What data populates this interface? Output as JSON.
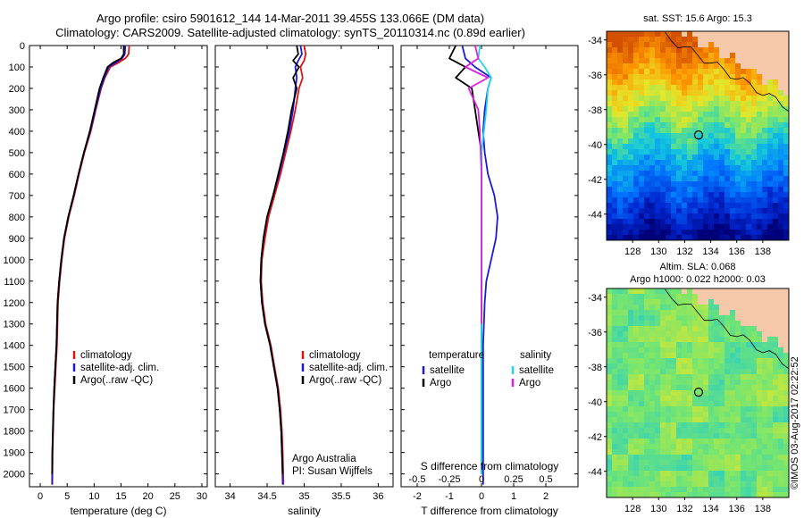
{
  "titles": {
    "line1": "Argo profile: csiro 5901612_144 14-Mar-2011 39.455S 133.066E (DM data)",
    "line2": "Climatology: CARS2009. Satellite-adjusted climatology: synTS_20110314.nc (0.89d earlier)"
  },
  "colors": {
    "climatology": "#e41010",
    "satellite": "#1a1adc",
    "argo": "#000000",
    "sat_salinity": "#22d8e8",
    "argo_salinity": "#dd22dd"
  },
  "chart_data": [
    {
      "type": "line",
      "xlabel": "temperature (deg C)",
      "ylabel": "",
      "xlim": [
        -2,
        31
      ],
      "ylim": [
        2060,
        0
      ],
      "xticks": [
        0,
        5,
        10,
        15,
        20,
        25,
        30
      ],
      "yticks": [
        0,
        100,
        200,
        300,
        400,
        500,
        600,
        700,
        800,
        900,
        1000,
        1100,
        1200,
        1300,
        1400,
        1500,
        1600,
        1700,
        1800,
        1900,
        2000
      ],
      "legend": [
        "climatology",
        "satellite-adj. clim.",
        "Argo(..raw -QC)"
      ],
      "series": [
        {
          "name": "climatology",
          "x": [
            16.5,
            16.4,
            15.8,
            14.5,
            13.0,
            12.0,
            11.3,
            10.3,
            9.4,
            8.2,
            7.2,
            6.3,
            5.3,
            4.5,
            4.0,
            3.6,
            3.3,
            3.1,
            2.9,
            2.7,
            2.5,
            2.4,
            2.3,
            2.25
          ],
          "y": [
            0,
            40,
            60,
            80,
            100,
            150,
            200,
            300,
            400,
            500,
            600,
            700,
            800,
            900,
            1000,
            1100,
            1200,
            1400,
            1500,
            1600,
            1700,
            1800,
            1900,
            2050
          ]
        },
        {
          "name": "satellite-adj. clim.",
          "x": [
            15.8,
            15.7,
            15.2,
            14.0,
            12.7,
            11.9,
            11.2,
            10.2,
            9.3,
            8.1,
            7.1,
            6.2,
            5.2,
            4.4,
            3.9,
            3.5,
            3.2,
            3.0,
            2.8,
            2.6,
            2.45,
            2.35,
            2.25,
            2.2
          ],
          "y": [
            0,
            40,
            60,
            80,
            100,
            150,
            200,
            300,
            400,
            500,
            600,
            700,
            800,
            900,
            1000,
            1100,
            1200,
            1400,
            1500,
            1600,
            1700,
            1800,
            1900,
            2050
          ]
        },
        {
          "name": "Argo(..raw -QC)",
          "x": [
            15.5,
            15.5,
            15.0,
            13.5,
            12.5,
            11.7,
            11.0,
            10.1,
            9.2,
            8.1,
            7.1,
            6.2,
            5.2,
            4.4,
            3.9,
            3.5,
            3.2,
            3.0,
            2.8,
            2.6,
            2.45,
            2.35,
            2.25,
            2.2
          ],
          "y": [
            0,
            40,
            60,
            80,
            100,
            150,
            200,
            300,
            400,
            500,
            600,
            700,
            800,
            900,
            1000,
            1100,
            1200,
            1400,
            1500,
            1600,
            1700,
            1800,
            1900,
            2000
          ]
        }
      ]
    },
    {
      "type": "line",
      "xlabel": "salinity",
      "ylabel": "",
      "xlim": [
        33.8,
        36.2
      ],
      "ylim": [
        2060,
        0
      ],
      "xticks": [
        34,
        34.5,
        35,
        35.5,
        36
      ],
      "legend": [
        "climatology",
        "satellite-adj. clim.",
        "Argo(..raw -QC)"
      ],
      "annotation": [
        "Argo Australia",
        "PI: Susan Wijffels"
      ],
      "series": [
        {
          "name": "climatology",
          "x": [
            35.0,
            35.02,
            35.0,
            34.95,
            34.98,
            34.93,
            34.88,
            34.82,
            34.75,
            34.68,
            34.6,
            34.52,
            34.47,
            34.43,
            34.42,
            34.44,
            34.48,
            34.55,
            34.6,
            34.65,
            34.68,
            34.7,
            34.71,
            34.72
          ],
          "y": [
            0,
            40,
            70,
            100,
            150,
            200,
            300,
            400,
            500,
            600,
            700,
            800,
            900,
            1000,
            1100,
            1200,
            1300,
            1400,
            1500,
            1600,
            1700,
            1800,
            1900,
            2050
          ]
        },
        {
          "name": "satellite-adj. clim.",
          "x": [
            34.95,
            34.97,
            34.92,
            34.88,
            34.9,
            34.88,
            34.85,
            34.8,
            34.73,
            34.66,
            34.58,
            34.5,
            34.45,
            34.42,
            34.41,
            34.43,
            34.47,
            34.54,
            34.59,
            34.64,
            34.67,
            34.69,
            34.7,
            34.71
          ],
          "y": [
            0,
            40,
            70,
            100,
            150,
            200,
            300,
            400,
            500,
            600,
            700,
            800,
            900,
            1000,
            1100,
            1200,
            1300,
            1400,
            1500,
            1600,
            1700,
            1800,
            1900,
            2050
          ]
        },
        {
          "name": "Argo(..raw -QC)",
          "x": [
            34.9,
            34.92,
            34.85,
            34.93,
            34.85,
            34.9,
            34.83,
            34.78,
            34.72,
            34.65,
            34.58,
            34.5,
            34.45,
            34.42,
            34.41,
            34.43,
            34.47,
            34.54,
            34.59,
            34.64,
            34.67,
            34.69,
            34.7,
            34.71
          ],
          "y": [
            0,
            40,
            70,
            100,
            150,
            200,
            300,
            400,
            500,
            600,
            700,
            800,
            900,
            1000,
            1100,
            1200,
            1300,
            1400,
            1500,
            1600,
            1700,
            1800,
            1900,
            2000
          ]
        }
      ]
    },
    {
      "type": "line",
      "xlabel": "T difference from climatology",
      "xlabel_top": "S difference from climatology",
      "ylabel": "",
      "xlim": [
        -2.5,
        3.0
      ],
      "ylim": [
        2060,
        0
      ],
      "xticks": [
        -2,
        -1,
        0,
        1,
        2
      ],
      "xticks_top": [
        "-0.5",
        "-0.25",
        "0",
        "0.25",
        "0.5"
      ],
      "legend_groups": [
        "temperature",
        "salinity"
      ],
      "legend": [
        "satellite",
        "Argo",
        "satellite",
        "Argo"
      ],
      "series": [
        {
          "name": "temperature satellite",
          "x": [
            -0.6,
            -0.5,
            -0.2,
            0.3,
            0.2,
            0.1,
            0.05,
            0.1,
            0.2,
            0.4,
            0.5,
            0.45,
            0.3,
            0.15,
            0.1,
            0.05,
            0.05,
            0.05,
            0.05,
            0.05,
            0.05
          ],
          "y": [
            0,
            60,
            100,
            150,
            200,
            300,
            400,
            500,
            600,
            700,
            800,
            900,
            1000,
            1100,
            1200,
            1400,
            1600,
            1700,
            1800,
            1900,
            2050
          ]
        },
        {
          "name": "temperature Argo",
          "x": [
            -0.8,
            -1.0,
            -0.5,
            -0.8,
            -0.3,
            -0.2,
            -0.1,
            0.0,
            0.0,
            0.0,
            0.0,
            0.0,
            0.0,
            0.0,
            0.0,
            0.0,
            0.0
          ],
          "y": [
            0,
            60,
            100,
            150,
            200,
            300,
            400,
            500,
            600,
            800,
            1000,
            1200,
            1400,
            1600,
            1800,
            1900,
            2000
          ]
        },
        {
          "name": "salinity satellite",
          "x": [
            -0.05,
            -0.1,
            0.1,
            0.3,
            0.2,
            0.15,
            0.0,
            0.0,
            0.0,
            0.0,
            0.0,
            0.0,
            0.0
          ],
          "y": [
            0,
            60,
            100,
            150,
            200,
            300,
            500,
            700,
            900,
            1200,
            1500,
            1800,
            2000
          ]
        },
        {
          "name": "salinity Argo",
          "x": [
            -0.2,
            -0.1,
            -0.5,
            0.2,
            -0.4,
            -0.1,
            -0.05,
            0.0,
            0.0,
            0.0,
            0.0,
            0.0
          ],
          "y": [
            0,
            60,
            100,
            150,
            200,
            300,
            400,
            600,
            800,
            1000,
            1200,
            1300
          ]
        }
      ]
    },
    {
      "type": "heatmap",
      "title": "sat. SST: 15.6  Argo: 15.3",
      "xlim": [
        126,
        140
      ],
      "ylim": [
        -45.5,
        -33.5
      ],
      "xticks": [
        128,
        130,
        132,
        134,
        136,
        138
      ],
      "yticks": [
        -34,
        -36,
        -38,
        -40,
        -42,
        -44
      ],
      "marker": {
        "lon": 133.066,
        "lat": -39.455
      }
    },
    {
      "type": "heatmap",
      "title_lines": [
        "Altim. SLA: 0.068",
        "Argo h1000: 0.022 h2000: 0.03"
      ],
      "xlim": [
        126,
        140
      ],
      "ylim": [
        -45.5,
        -33.5
      ],
      "xticks": [
        128,
        130,
        132,
        134,
        136,
        138
      ],
      "yticks": [
        -34,
        -36,
        -38,
        -40,
        -42,
        -44
      ],
      "marker": {
        "lon": 133.066,
        "lat": -39.455
      }
    }
  ],
  "credit": "©IMOS 03-Aug-2017 02:22:52"
}
